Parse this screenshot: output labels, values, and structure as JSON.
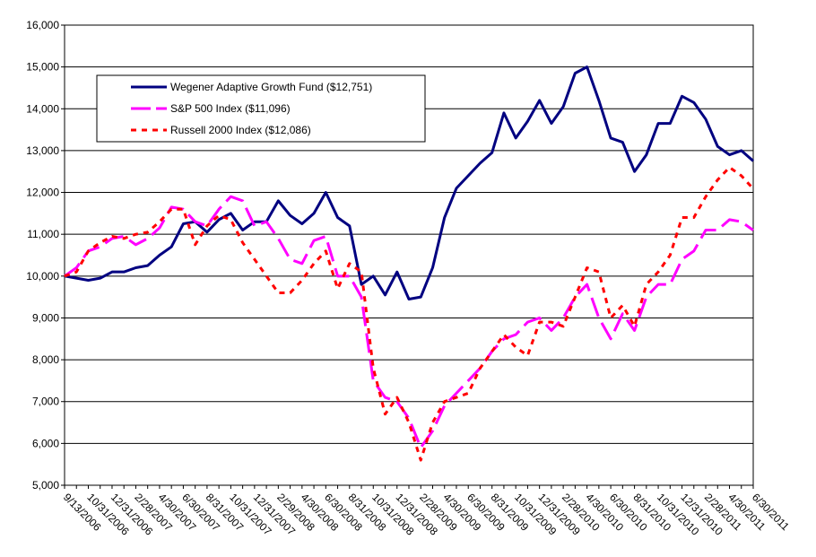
{
  "chart_data": {
    "type": "line",
    "categories": [
      "9/13/2006",
      null,
      "10/31/2006",
      null,
      "12/31/2006",
      null,
      "2/28/2007",
      null,
      "4/30/2007",
      null,
      "6/30/2007",
      null,
      "8/31/2007",
      null,
      "10/31/2007",
      null,
      "12/31/2007",
      null,
      "2/29/2008",
      null,
      "4/30/2008",
      null,
      "6/30/2008",
      null,
      "8/31/2008",
      null,
      "10/31/2008",
      null,
      "12/31/2008",
      null,
      "2/28/2009",
      null,
      "4/30/2009",
      null,
      "6/30/2009",
      null,
      "8/31/2009",
      null,
      "10/31/2009",
      null,
      "12/31/2009",
      null,
      "2/28/2010",
      null,
      "4/30/2010",
      null,
      "6/30/2010",
      null,
      "8/31/2010",
      null,
      "10/31/2010",
      null,
      "12/31/2010",
      null,
      "2/28/2011",
      null,
      "4/30/2011",
      null,
      "6/30/2011"
    ],
    "series": [
      {
        "name": "Wegener Adaptive Growth Fund ($12,751)",
        "color": "#000080",
        "dash": "solid",
        "values": [
          10000,
          9950,
          9900,
          9950,
          10100,
          10100,
          10200,
          10250,
          10500,
          10700,
          11250,
          11300,
          11050,
          11350,
          11500,
          11100,
          11300,
          11300,
          11800,
          11450,
          11250,
          11500,
          12000,
          11400,
          11200,
          9800,
          10000,
          9550,
          10100,
          9450,
          9500,
          10200,
          11400,
          12100,
          12400,
          12700,
          12950,
          13900,
          13300,
          13700,
          14200,
          13650,
          14050,
          14850,
          15000,
          14200,
          13300,
          13200,
          12500,
          12900,
          13650,
          13650,
          14300,
          14150,
          13750,
          13100,
          12900,
          13000,
          12751
        ]
      },
      {
        "name": "S&P 500 Index ($11,096)",
        "color": "#ff00ff",
        "dash": "long",
        "values": [
          10000,
          10200,
          10600,
          10700,
          10900,
          10950,
          10750,
          10900,
          11150,
          11650,
          11600,
          11300,
          11200,
          11600,
          11900,
          11800,
          11200,
          11300,
          10900,
          10400,
          10300,
          10850,
          10950,
          10000,
          10000,
          9500,
          7500,
          7100,
          7000,
          6600,
          5900,
          6300,
          6900,
          7200,
          7500,
          7800,
          8200,
          8500,
          8600,
          8900,
          9000,
          8700,
          9000,
          9500,
          9800,
          9000,
          8500,
          9100,
          8700,
          9500,
          9800,
          9800,
          10400,
          10600,
          11100,
          11100,
          11350,
          11300,
          11096
        ]
      },
      {
        "name": "Russell 2000 Index ($12,086)",
        "color": "#ff0000",
        "dash": "short",
        "values": [
          10000,
          10100,
          10600,
          10800,
          10950,
          10900,
          11000,
          11050,
          11300,
          11600,
          11600,
          10750,
          11200,
          11450,
          11350,
          10800,
          10400,
          10000,
          9600,
          9600,
          9900,
          10300,
          10600,
          9700,
          10300,
          10100,
          7800,
          6700,
          7100,
          6500,
          5600,
          6500,
          7000,
          7100,
          7200,
          7800,
          8200,
          8600,
          8300,
          8100,
          8900,
          8900,
          8800,
          9500,
          10200,
          10100,
          9000,
          9300,
          8800,
          9800,
          10100,
          10500,
          11400,
          11400,
          11900,
          12300,
          12600,
          12400,
          12086
        ]
      }
    ],
    "ylim": [
      5000,
      16000
    ],
    "yticks": [
      {
        "value": 5000,
        "label": "5,000"
      },
      {
        "value": 6000,
        "label": "6,000"
      },
      {
        "value": 7000,
        "label": "7,000"
      },
      {
        "value": 8000,
        "label": "8,000"
      },
      {
        "value": 9000,
        "label": "9,000"
      },
      {
        "value": 10000,
        "label": "10,000"
      },
      {
        "value": 11000,
        "label": "11,000"
      },
      {
        "value": 12000,
        "label": "12,000"
      },
      {
        "value": 13000,
        "label": "13,000"
      },
      {
        "value": 14000,
        "label": "14,000"
      },
      {
        "value": 15000,
        "label": "15,000"
      },
      {
        "value": 16000,
        "label": "16,000"
      }
    ],
    "grid": true,
    "legend": "upper-left"
  }
}
